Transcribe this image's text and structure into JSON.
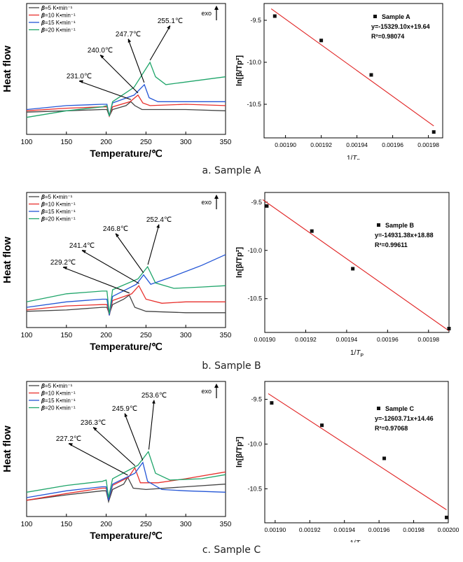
{
  "colors": {
    "beta5": "#444444",
    "beta10": "#e8302c",
    "beta15": "#2456d6",
    "beta20": "#1fa56a",
    "fit": "#e02020",
    "point": "#111111"
  },
  "dsc_common": {
    "ylabel": "Heat flow",
    "xlabel": "Temperature/℃",
    "exo_label": "exo",
    "xticks": [
      "100",
      "150",
      "200",
      "250",
      "300",
      "350"
    ],
    "legend": [
      {
        "beta": "β",
        "rest": "=5 K•min⁻¹"
      },
      {
        "beta": "β",
        "rest": "=10 K•min⁻¹"
      },
      {
        "beta": "β",
        "rest": "=15 K•min⁻¹"
      },
      {
        "beta": "β",
        "rest": "=20 K•min⁻¹"
      }
    ]
  },
  "kiss_common": {
    "ylabel": "ln[β/Tp²]",
    "xlabel": "1/Tp"
  },
  "chart_data": [
    {
      "type": "line",
      "title": "a. Sample A (DSC)",
      "xlabel": "Temperature/℃",
      "ylabel": "Heat flow",
      "xlim": [
        100,
        350
      ],
      "peaks": [
        "231.0℃",
        "240.0℃",
        "247.7℃",
        "255.1℃"
      ],
      "peak_temps": [
        231.0,
        240.0,
        247.7,
        255.1
      ]
    },
    {
      "type": "scatter",
      "title": "a. Sample A (Kissinger)",
      "legend": "Sample A",
      "equation": "y=-15329.10x+19.64",
      "r2": "R²=0.98074",
      "slope": -15329.1,
      "intercept": 19.64,
      "xlim": [
        0.001888,
        0.001988
      ],
      "ylim": [
        -10.9,
        -9.3
      ],
      "xticks": [
        "0.00190",
        "0.00192",
        "0.00194",
        "0.00196",
        "0.00198"
      ],
      "yticks": [
        "-9.5",
        "-10.0",
        "-10.5"
      ],
      "x": [
        0.001894,
        0.00192,
        0.001948,
        0.001983
      ],
      "y": [
        -9.45,
        -9.74,
        -10.15,
        -10.83
      ]
    },
    {
      "type": "line",
      "title": "b. Sample B (DSC)",
      "xlabel": "Temperature/℃",
      "ylabel": "Heat flow",
      "xlim": [
        100,
        350
      ],
      "peaks": [
        "229.2℃",
        "241.4℃",
        "246.8℃",
        "252.4℃"
      ],
      "peak_temps": [
        229.2,
        241.4,
        246.8,
        252.4
      ]
    },
    {
      "type": "scatter",
      "title": "b. Sample B (Kissinger)",
      "legend": "Sample B",
      "equation": "y=-14931.38x+18.88",
      "r2": "R²=0.99611",
      "slope": -14931.38,
      "intercept": 18.88,
      "xlim": [
        0.0019,
        0.00199
      ],
      "ylim": [
        -10.85,
        -9.4
      ],
      "xticks": [
        "0.00190",
        "0.00192",
        "0.00194",
        "0.00196",
        "0.00198"
      ],
      "yticks": [
        "-9.5",
        "-10.0",
        "-10.5"
      ],
      "x": [
        0.001901,
        0.001923,
        0.001943,
        0.00199
      ],
      "y": [
        -9.54,
        -9.8,
        -10.19,
        -10.81
      ]
    },
    {
      "type": "line",
      "title": "c. Sample C (DSC)",
      "xlabel": "Temperature/℃",
      "ylabel": "Heat flow",
      "xlim": [
        100,
        350
      ],
      "peaks": [
        "227.2℃",
        "236.3℃",
        "245.9℃",
        "253.6℃"
      ],
      "peak_temps": [
        227.2,
        236.3,
        245.9,
        253.6
      ]
    },
    {
      "type": "scatter",
      "title": "c. Sample C (Kissinger)",
      "legend": "Sample C",
      "equation": "y=-12603.71x+14.46",
      "r2": "R²=0.97068",
      "slope": -12603.71,
      "intercept": 14.46,
      "xlim": [
        0.001894,
        0.002
      ],
      "ylim": [
        -10.88,
        -9.3
      ],
      "xticks": [
        "0.00190",
        "0.00192",
        "0.00194",
        "0.00196",
        "0.00198",
        "0.00200"
      ],
      "yticks": [
        "-9.5",
        "-10.0",
        "-10.5"
      ],
      "x": [
        0.001898,
        0.001927,
        0.001963,
        0.001999
      ],
      "y": [
        -9.54,
        -9.79,
        -10.16,
        -10.82
      ]
    }
  ],
  "captions": [
    "a. Sample A",
    "b. Sample B",
    "c. Sample C"
  ]
}
